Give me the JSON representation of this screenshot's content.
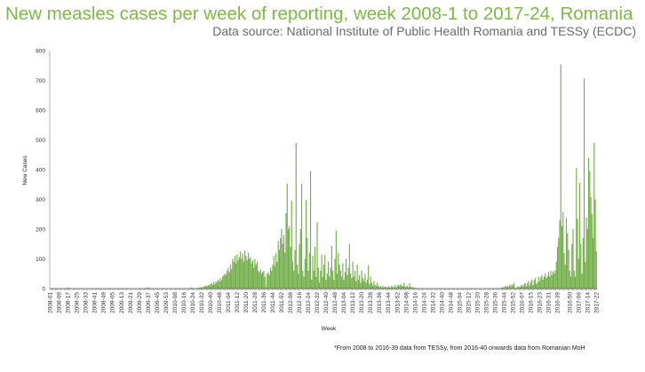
{
  "header": {
    "title": "New measles cases per week of reporting, week 2008-1 to 2017-24, Romania",
    "subtitle": "Data source: National Institute of Public Health Romania and TESSy (ECDC)"
  },
  "footnote": "*From 2008 to 2016-39 data from TESSy, from 2016-40 onwards data from Romanian MoH",
  "chart_data": {
    "type": "bar",
    "title": "New measles cases per week of reporting, week 2008-1 to 2017-24, Romania",
    "xlabel": "Week",
    "ylabel": "New Cases",
    "ylim": [
      0,
      800
    ],
    "yticks": [
      0,
      100,
      200,
      300,
      400,
      500,
      600,
      700,
      800
    ],
    "grid": false,
    "bar_color": "#70ad47",
    "xtick_labels": [
      "2008-01",
      "2008-09",
      "2008-17",
      "2008-25",
      "2008-33",
      "2008-41",
      "2008-49",
      "2009-05",
      "2009-13",
      "2009-21",
      "2009-29",
      "2009-37",
      "2009-45",
      "2009-53",
      "2010-08",
      "2010-16",
      "2010-24",
      "2010-32",
      "2010-40",
      "2010-48",
      "2011-04",
      "2011-12",
      "2011-20",
      "2011-28",
      "2011-36",
      "2011-44",
      "2011-52",
      "2012-08",
      "2012-16",
      "2012-24",
      "2012-32",
      "2012-40",
      "2012-48",
      "2013-04",
      "2013-12",
      "2013-20",
      "2013-28",
      "2013-36",
      "2013-44",
      "2013-52",
      "2014-08",
      "2014-16",
      "2014-24",
      "2014-32",
      "2014-40",
      "2014-48",
      "2015-04",
      "2015-12",
      "2015-20",
      "2015-28",
      "2015-36",
      "2015-44",
      "2015-52",
      "2016-07",
      "2016-15",
      "2016-23",
      "2016-31",
      "2016-39",
      "2016-50",
      "2017-06",
      "2017-14",
      "2017-22"
    ],
    "values_by_year": {
      "2008": [
        0,
        1,
        0,
        0,
        1,
        0,
        0,
        1,
        0,
        0,
        0,
        1,
        0,
        0,
        2,
        1,
        3,
        2,
        1,
        0,
        0,
        1,
        0,
        0,
        0,
        0,
        1,
        0,
        0,
        0,
        1,
        0,
        0,
        0,
        0,
        0,
        1,
        0,
        0,
        0,
        0,
        0,
        0,
        1,
        0,
        0,
        0,
        0,
        0,
        1,
        0,
        0
      ],
      "2009": [
        0,
        0,
        1,
        0,
        0,
        0,
        0,
        0,
        0,
        1,
        0,
        0,
        0,
        0,
        0,
        0,
        0,
        1,
        0,
        0,
        0,
        0,
        0,
        0,
        0,
        0,
        0,
        0,
        1,
        0,
        0,
        0,
        0,
        1,
        2,
        3,
        4,
        2,
        1,
        0,
        0,
        0,
        0,
        1,
        0,
        0,
        0,
        0,
        0,
        0,
        1,
        0,
        0
      ],
      "2010": [
        0,
        0,
        0,
        1,
        0,
        0,
        0,
        0,
        0,
        1,
        0,
        0,
        0,
        0,
        0,
        0,
        0,
        1,
        0,
        0,
        1,
        2,
        3,
        2,
        1,
        0,
        1,
        0,
        2,
        3,
        4,
        3,
        6,
        5,
        8,
        10,
        7,
        12,
        9,
        15,
        18,
        12,
        22,
        16,
        25,
        20,
        30,
        24,
        35,
        28,
        40,
        45
      ],
      "2011": [
        50,
        45,
        60,
        70,
        55,
        80,
        65,
        100,
        90,
        110,
        85,
        115,
        95,
        105,
        125,
        100,
        118,
        90,
        128,
        110,
        95,
        120,
        100,
        105,
        85,
        95,
        70,
        100,
        80,
        90,
        60,
        55,
        65,
        50,
        55,
        60,
        40,
        5,
        50,
        55,
        45,
        70,
        60,
        80,
        110,
        75,
        120,
        90,
        160,
        130,
        170,
        200
      ],
      "2012": [
        150,
        180,
        120,
        254,
        353,
        200,
        210,
        140,
        295,
        90,
        60,
        130,
        490,
        80,
        50,
        150,
        200,
        352,
        60,
        40,
        100,
        298,
        170,
        60,
        120,
        395,
        30,
        110,
        60,
        140,
        40,
        224,
        70,
        20,
        60,
        114,
        40,
        80,
        113,
        30,
        50,
        90,
        40,
        70,
        144,
        60,
        30,
        100,
        194,
        50,
        120,
        80
      ],
      "2013": [
        60,
        40,
        85,
        30,
        55,
        100,
        45,
        70,
        149,
        50,
        35,
        90,
        40,
        60,
        25,
        80,
        30,
        45,
        20,
        60,
        35,
        25,
        50,
        20,
        30,
        78,
        15,
        40,
        20,
        10,
        25,
        12,
        8,
        20,
        10,
        5,
        8,
        4,
        10,
        3,
        6,
        5,
        2,
        8,
        3,
        4,
        10,
        5,
        3,
        12,
        4,
        8
      ],
      "2014": [
        12,
        8,
        15,
        10,
        6,
        20,
        8,
        5,
        10,
        4,
        18,
        6,
        3,
        5,
        2,
        3,
        1,
        2,
        1,
        0,
        0,
        1,
        0,
        0,
        0,
        0,
        0,
        1,
        0,
        0,
        0,
        0,
        0,
        0,
        0,
        0,
        0,
        0,
        0,
        0,
        0,
        0,
        0,
        0,
        0,
        0,
        0,
        0,
        0,
        0,
        0,
        0
      ],
      "2015": [
        0,
        0,
        0,
        0,
        0,
        0,
        0,
        0,
        0,
        0,
        0,
        0,
        0,
        0,
        0,
        0,
        0,
        0,
        0,
        0,
        0,
        0,
        0,
        0,
        0,
        0,
        0,
        0,
        0,
        0,
        0,
        0,
        0,
        0,
        0,
        0,
        0,
        0,
        1,
        0,
        2,
        3,
        5,
        4,
        8,
        6,
        10,
        5,
        12,
        8,
        15,
        10,
        20
      ],
      "2016": [
        2,
        3,
        5,
        8,
        4,
        10,
        12,
        6,
        15,
        20,
        8,
        18,
        25,
        10,
        22,
        30,
        12,
        28,
        35,
        15,
        20,
        40,
        25,
        38,
        45,
        30,
        40,
        50,
        35,
        42,
        55,
        40,
        60,
        45,
        58,
        50,
        60,
        90,
        140,
        170,
        230,
        754,
        210,
        257,
        120,
        80,
        237,
        185,
        130,
        60,
        40,
        150
      ],
      "2017": [
        200,
        60,
        40,
        405,
        234,
        100,
        355,
        150,
        50,
        170,
        707,
        90,
        239,
        200,
        439,
        395,
        308,
        250,
        170,
        490,
        300,
        125
      ]
    }
  }
}
